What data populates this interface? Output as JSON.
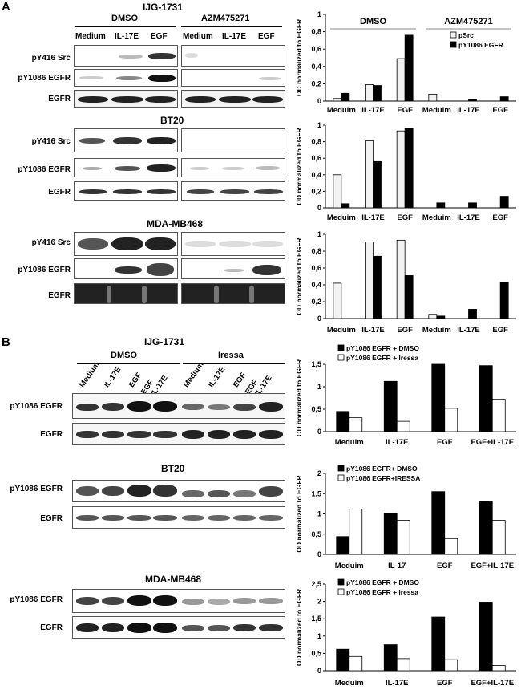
{
  "panel_a": {
    "letter": "A",
    "cell_lines": [
      "IJG-1731",
      "BT20",
      "MDA-MB468"
    ],
    "conditions": [
      "DMSO",
      "AZM475271"
    ],
    "lanes": [
      "Medium",
      "IL-17E",
      "EGF"
    ],
    "rows": [
      "pY416 Src",
      "pY1086 EGFR",
      "EGFR"
    ]
  },
  "panel_b": {
    "letter": "B",
    "cell_lines": [
      "IJG-1731",
      "BT20",
      "MDA-MB468"
    ],
    "conditions": [
      "DMSO",
      "Iressa"
    ],
    "lanes": [
      "Medium",
      "IL-17E",
      "EGF",
      "EGF\n+IL-17E",
      "Medium",
      "IL-17E",
      "EGF",
      "EGF\n+IL-17E"
    ],
    "rows": [
      "pY1086 EGFR",
      "EGFR"
    ]
  },
  "chart_data": [
    {
      "type": "bar",
      "title": "",
      "ylabel": "OD normalized to EGFR",
      "ylim": [
        0,
        1
      ],
      "yticks": [
        "0",
        "0,2",
        "0,4",
        "0,6",
        "0,8",
        "1"
      ],
      "group_labels": [
        "DMSO",
        "AZM475271"
      ],
      "categories": [
        "Meduim",
        "IL-17E",
        "EGF",
        "Meduim",
        "IL-17E",
        "EGF"
      ],
      "series": [
        {
          "name": "pSrc",
          "color": "#f2f2f2",
          "values": [
            0.03,
            0.19,
            0.49,
            0.08,
            0.0,
            0.0
          ]
        },
        {
          "name": "pY1086 EGFR",
          "color": "#000000",
          "values": [
            0.09,
            0.18,
            0.76,
            0.0,
            0.02,
            0.05
          ]
        }
      ],
      "legend": "right"
    },
    {
      "type": "bar",
      "title": "",
      "ylabel": "OD normalized to EGFR",
      "ylim": [
        0,
        1
      ],
      "yticks": [
        "0",
        "0,2",
        "0,4",
        "0,6",
        "0,8",
        "1"
      ],
      "categories": [
        "Meduim",
        "IL-17E",
        "EGF",
        "Meduim",
        "IL-17E",
        "EGF"
      ],
      "series": [
        {
          "name": "pSrc",
          "color": "#f2f2f2",
          "values": [
            0.4,
            0.81,
            0.93,
            0.0,
            0.0,
            0.0
          ]
        },
        {
          "name": "pY1086 EGFR",
          "color": "#000000",
          "values": [
            0.05,
            0.56,
            0.96,
            0.06,
            0.06,
            0.14
          ]
        }
      ]
    },
    {
      "type": "bar",
      "title": "",
      "ylabel": "OD normalized to EGFR",
      "ylim": [
        0,
        1
      ],
      "yticks": [
        "0",
        "0,2",
        "0,4",
        "0,6",
        "0,8",
        "1"
      ],
      "categories": [
        "Meduim",
        "IL-17E",
        "EGF",
        "Meduim",
        "IL-17E",
        "EGF"
      ],
      "series": [
        {
          "name": "pSrc",
          "color": "#f2f2f2",
          "values": [
            0.42,
            0.91,
            0.93,
            0.05,
            0.0,
            0.0
          ]
        },
        {
          "name": "pY1086 EGFR",
          "color": "#000000",
          "values": [
            0.0,
            0.74,
            0.51,
            0.03,
            0.11,
            0.43
          ]
        }
      ]
    },
    {
      "type": "bar",
      "title": "",
      "ylabel": "OD normalized to EGFR",
      "ylim": [
        0,
        1.5
      ],
      "yticks": [
        "0",
        "0,5",
        "1",
        "1,5"
      ],
      "categories": [
        "Meduim",
        "IL-17E",
        "EGF",
        "EGF+IL-17E"
      ],
      "series": [
        {
          "name": "pY1086 EGFR + DMSO",
          "color": "#000000",
          "values": [
            0.45,
            1.12,
            1.5,
            1.47
          ]
        },
        {
          "name": "pY1086 EGFR + Iressa",
          "color": "#ffffff",
          "values": [
            0.31,
            0.23,
            0.52,
            0.72
          ]
        }
      ],
      "legend": "top-left"
    },
    {
      "type": "bar",
      "title": "",
      "ylabel": "OD normalized to EGFR",
      "ylim": [
        0,
        2
      ],
      "yticks": [
        "0",
        "0,5",
        "1",
        "1,5",
        "2"
      ],
      "categories": [
        "Meduim",
        "IL-17",
        "EGF",
        "EGF+IL-17E"
      ],
      "series": [
        {
          "name": "pY1086 EGFR+ DMSO",
          "color": "#000000",
          "values": [
            0.44,
            1.01,
            1.55,
            1.3
          ]
        },
        {
          "name": "pY1086 EGFR+IRESSA",
          "color": "#ffffff",
          "values": [
            1.12,
            0.84,
            0.39,
            0.84
          ]
        }
      ],
      "legend": "top-left"
    },
    {
      "type": "bar",
      "title": "",
      "ylabel": "OD normalized to EGFR",
      "ylim": [
        0,
        2.5
      ],
      "yticks": [
        "0",
        "0,5",
        "1",
        "1,5",
        "2",
        "2,5"
      ],
      "categories": [
        "Meduim",
        "IL-17E",
        "EGF",
        "EGF+IL-17E"
      ],
      "series": [
        {
          "name": "pY1086 EGFR + DMSO",
          "color": "#000000",
          "values": [
            0.62,
            0.75,
            1.55,
            1.98
          ]
        },
        {
          "name": "pY1086 EGFR + Iressa",
          "color": "#ffffff",
          "values": [
            0.41,
            0.35,
            0.32,
            0.15
          ]
        }
      ],
      "legend": "top-left"
    }
  ]
}
